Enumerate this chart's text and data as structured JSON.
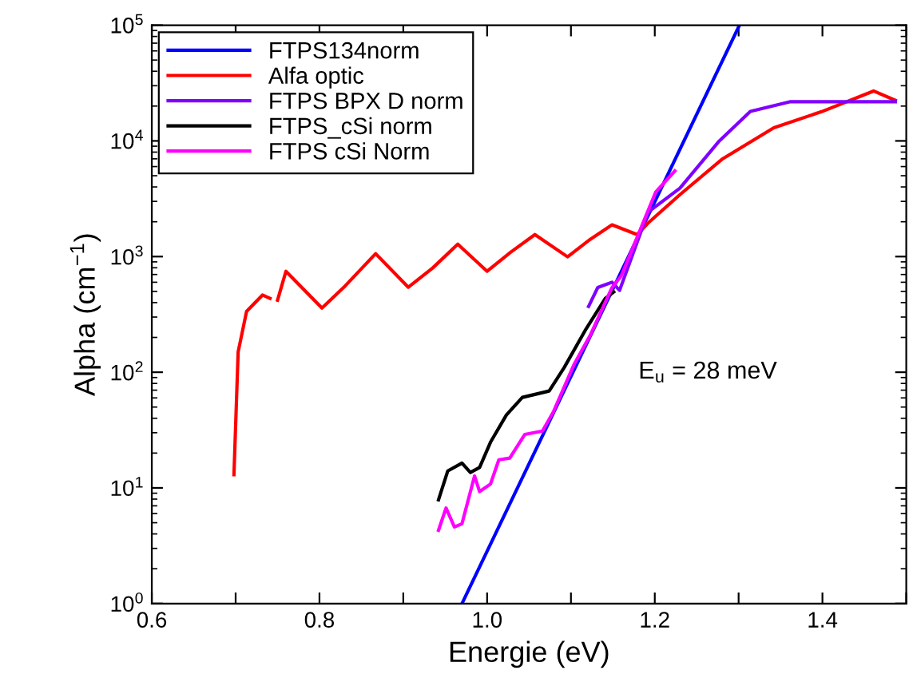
{
  "chart_data": {
    "type": "line",
    "xlabel": "Energie (eV)",
    "ylabel": "Alpha (cm$^{−1}$)",
    "log": "y",
    "xlim": [
      0.6,
      1.5
    ],
    "ylim": [
      1,
      100000
    ],
    "xticks": [
      0.6,
      {
        "value": 0.7,
        "label": null
      },
      0.8,
      {
        "value": 0.9,
        "label": null
      },
      "1.0",
      {
        "value": 1.1,
        "label": null
      },
      1.2,
      {
        "value": 1.3,
        "label": null
      },
      1.4,
      {
        "value": 1.5,
        "label": null
      }
    ],
    "yticks": [
      {
        "value": 1,
        "label": "10$^{0}$"
      },
      {
        "value": 10,
        "label": "10$^{1}$"
      },
      {
        "value": 100,
        "label": "10$^{2}$"
      },
      {
        "value": 1000,
        "label": "10$^{3}$"
      },
      {
        "value": 10000,
        "label": "10$^{4}$"
      },
      {
        "value": 100000,
        "label": "10$^{5}$"
      }
    ],
    "grid": false,
    "legend": "top left",
    "marker": "none",
    "line_style": "solid",
    "annotations": [
      "E$_{u}$ = 28 meV"
    ],
    "series": [
      {
        "name": "FTPS134norm",
        "color": "#0000ff",
        "x": [
          0.97,
          1.301
        ],
        "values": [
          1,
          100000
        ]
      },
      {
        "name": "Alfa optic",
        "color": "#ff0000",
        "x": [
          0.698,
          0.703,
          0.713,
          0.732,
          0.741,
          null,
          0.75,
          0.76,
          0.803,
          0.831,
          0.867,
          0.906,
          0.935,
          0.965,
          1.0,
          1.028,
          1.057,
          1.096,
          1.123,
          1.149,
          1.179,
          1.192,
          1.23,
          1.28,
          1.342,
          1.399,
          1.461,
          1.487
        ],
        "values": [
          13,
          150,
          335,
          465,
          435,
          null,
          420,
          746,
          359,
          561,
          1060,
          543,
          796,
          1280,
          746,
          1090,
          1550,
          994,
          1410,
          1880,
          1550,
          1950,
          3430,
          6920,
          13000,
          17900,
          27000,
          22400
        ]
      },
      {
        "name": "FTPS BPX D norm",
        "color": "#8000ff",
        "x": [
          1.121,
          1.132,
          1.149,
          1.158,
          1.192,
          1.23,
          1.277,
          1.314,
          1.361,
          1.487
        ],
        "values": [
          370,
          540,
          600,
          510,
          2420,
          3900,
          10000,
          18000,
          21800,
          21800
        ]
      },
      {
        "name": "FTPS_cSi norm",
        "color": "#000000",
        "x": [
          0.942,
          0.953,
          0.97,
          0.98,
          0.991,
          1.004,
          1.023,
          1.042,
          1.074,
          1.092,
          1.117,
          1.141,
          1.151
        ],
        "values": [
          7.9,
          14,
          16.4,
          13.6,
          15,
          24.8,
          42.7,
          60.6,
          68.8,
          110,
          230,
          435,
          495
        ]
      },
      {
        "name": "FTPS cSi Norm",
        "color": "#ff00ff",
        "x": [
          0.942,
          0.951,
          0.961,
          0.97,
          0.985,
          0.991,
          1.004,
          1.014,
          1.027,
          1.045,
          1.066,
          1.079,
          1.104,
          1.123,
          1.149,
          1.16,
          1.201,
          1.224
        ],
        "values": [
          4.3,
          6.7,
          4.6,
          4.9,
          12.7,
          9.3,
          10.8,
          17.5,
          18.1,
          29,
          31,
          45.4,
          118,
          209,
          540,
          680,
          3600,
          5500
        ]
      }
    ]
  }
}
